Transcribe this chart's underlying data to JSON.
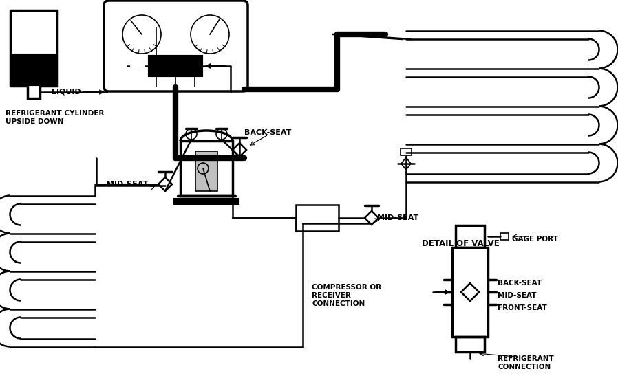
{
  "bg": "#ffffff",
  "lc": "#000000",
  "fig_w": 8.98,
  "fig_h": 5.5,
  "dpi": 100,
  "TLW": 6.0,
  "MLW": 2.5,
  "NLW": 1.8,
  "SLW": 1.2,
  "labels": {
    "ref_cyl": "REFRIGERANT CYLINDER\nUPSIDE DOWN",
    "liquid": "LIQUID",
    "back_seat": "BACK-SEAT",
    "mid_seat_l": "MID-SEAT",
    "mid_seat_r": "MID-SEAT",
    "detail": "DETAIL OF VALVE",
    "gage_port": "GAGE PORT",
    "bseat": "BACK-SEAT",
    "midseat": "MID-SEAT",
    "frontseat": "FRONT-SEAT",
    "comp_recv": "COMPRESSOR OR\nRECEIVER\nCONNECTION",
    "ref_conn": "REFRIGERANT\nCONNECTION"
  },
  "font": "DejaVu Sans"
}
